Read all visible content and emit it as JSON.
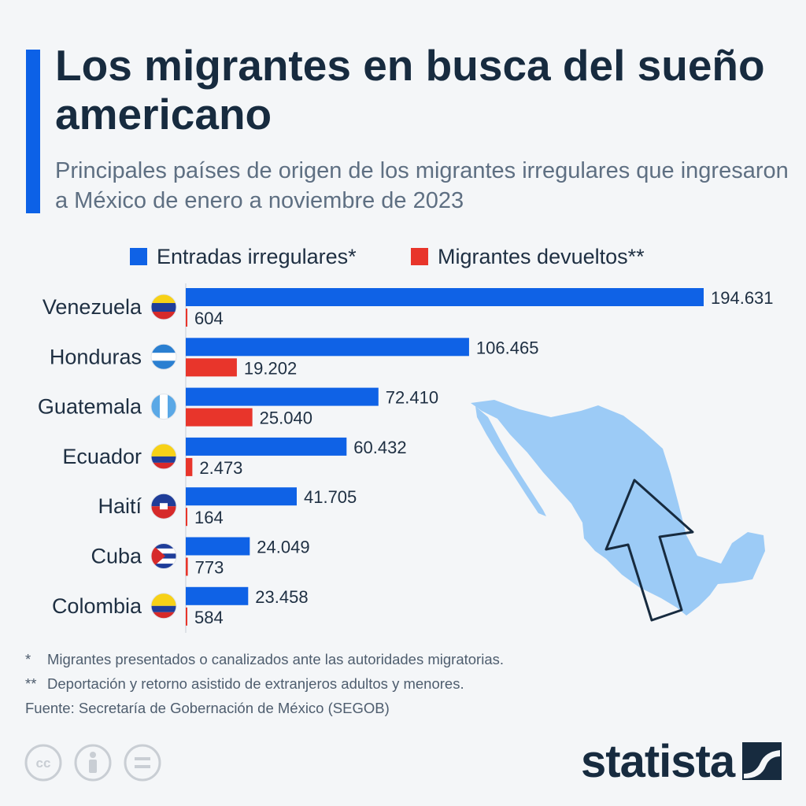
{
  "header": {
    "title": "Los migrantes en busca del sueño americano",
    "subtitle": "Principales países de origen de los migrantes irregulares que ingresaron a México de enero a noviembre de 2023"
  },
  "colors": {
    "accent": "#0c61e7",
    "series_entradas": "#0f62e6",
    "series_devueltos": "#e8352b",
    "map": "#9ccbf6",
    "title": "#172b3f"
  },
  "chart_data": {
    "type": "bar",
    "orientation": "horizontal",
    "categories": [
      "Venezuela",
      "Honduras",
      "Guatemala",
      "Ecuador",
      "Haití",
      "Cuba",
      "Colombia"
    ],
    "series": [
      {
        "name": "Entradas irregulares*",
        "values": [
          194631,
          106465,
          72410,
          60432,
          41705,
          24049,
          23458
        ],
        "labels": [
          "194.631",
          "106.465",
          "72.410",
          "60.432",
          "41.705",
          "24.049",
          "23.458"
        ]
      },
      {
        "name": "Migrantes devueltos**",
        "values": [
          604,
          19202,
          25040,
          2473,
          164,
          773,
          584
        ],
        "labels": [
          "604",
          "19.202",
          "25.040",
          "2.473",
          "164",
          "773",
          "584"
        ]
      }
    ],
    "legend": "top",
    "grid": false
  },
  "flags": [
    "venezuela-flag-icon",
    "honduras-flag-icon",
    "guatemala-flag-icon",
    "ecuador-flag-icon",
    "haiti-flag-icon",
    "cuba-flag-icon",
    "colombia-flag-icon"
  ],
  "footnotes": {
    "note1_mark": "*",
    "note1": "Migrantes presentados o canalizados ante las autoridades migratorias.",
    "note2_mark": "**",
    "note2": "Deportación y retorno asistido de extranjeros adultos y menores.",
    "source": "Fuente: Secretaría de Gobernación de México (SEGOB)"
  },
  "brand": {
    "name": "statista"
  }
}
